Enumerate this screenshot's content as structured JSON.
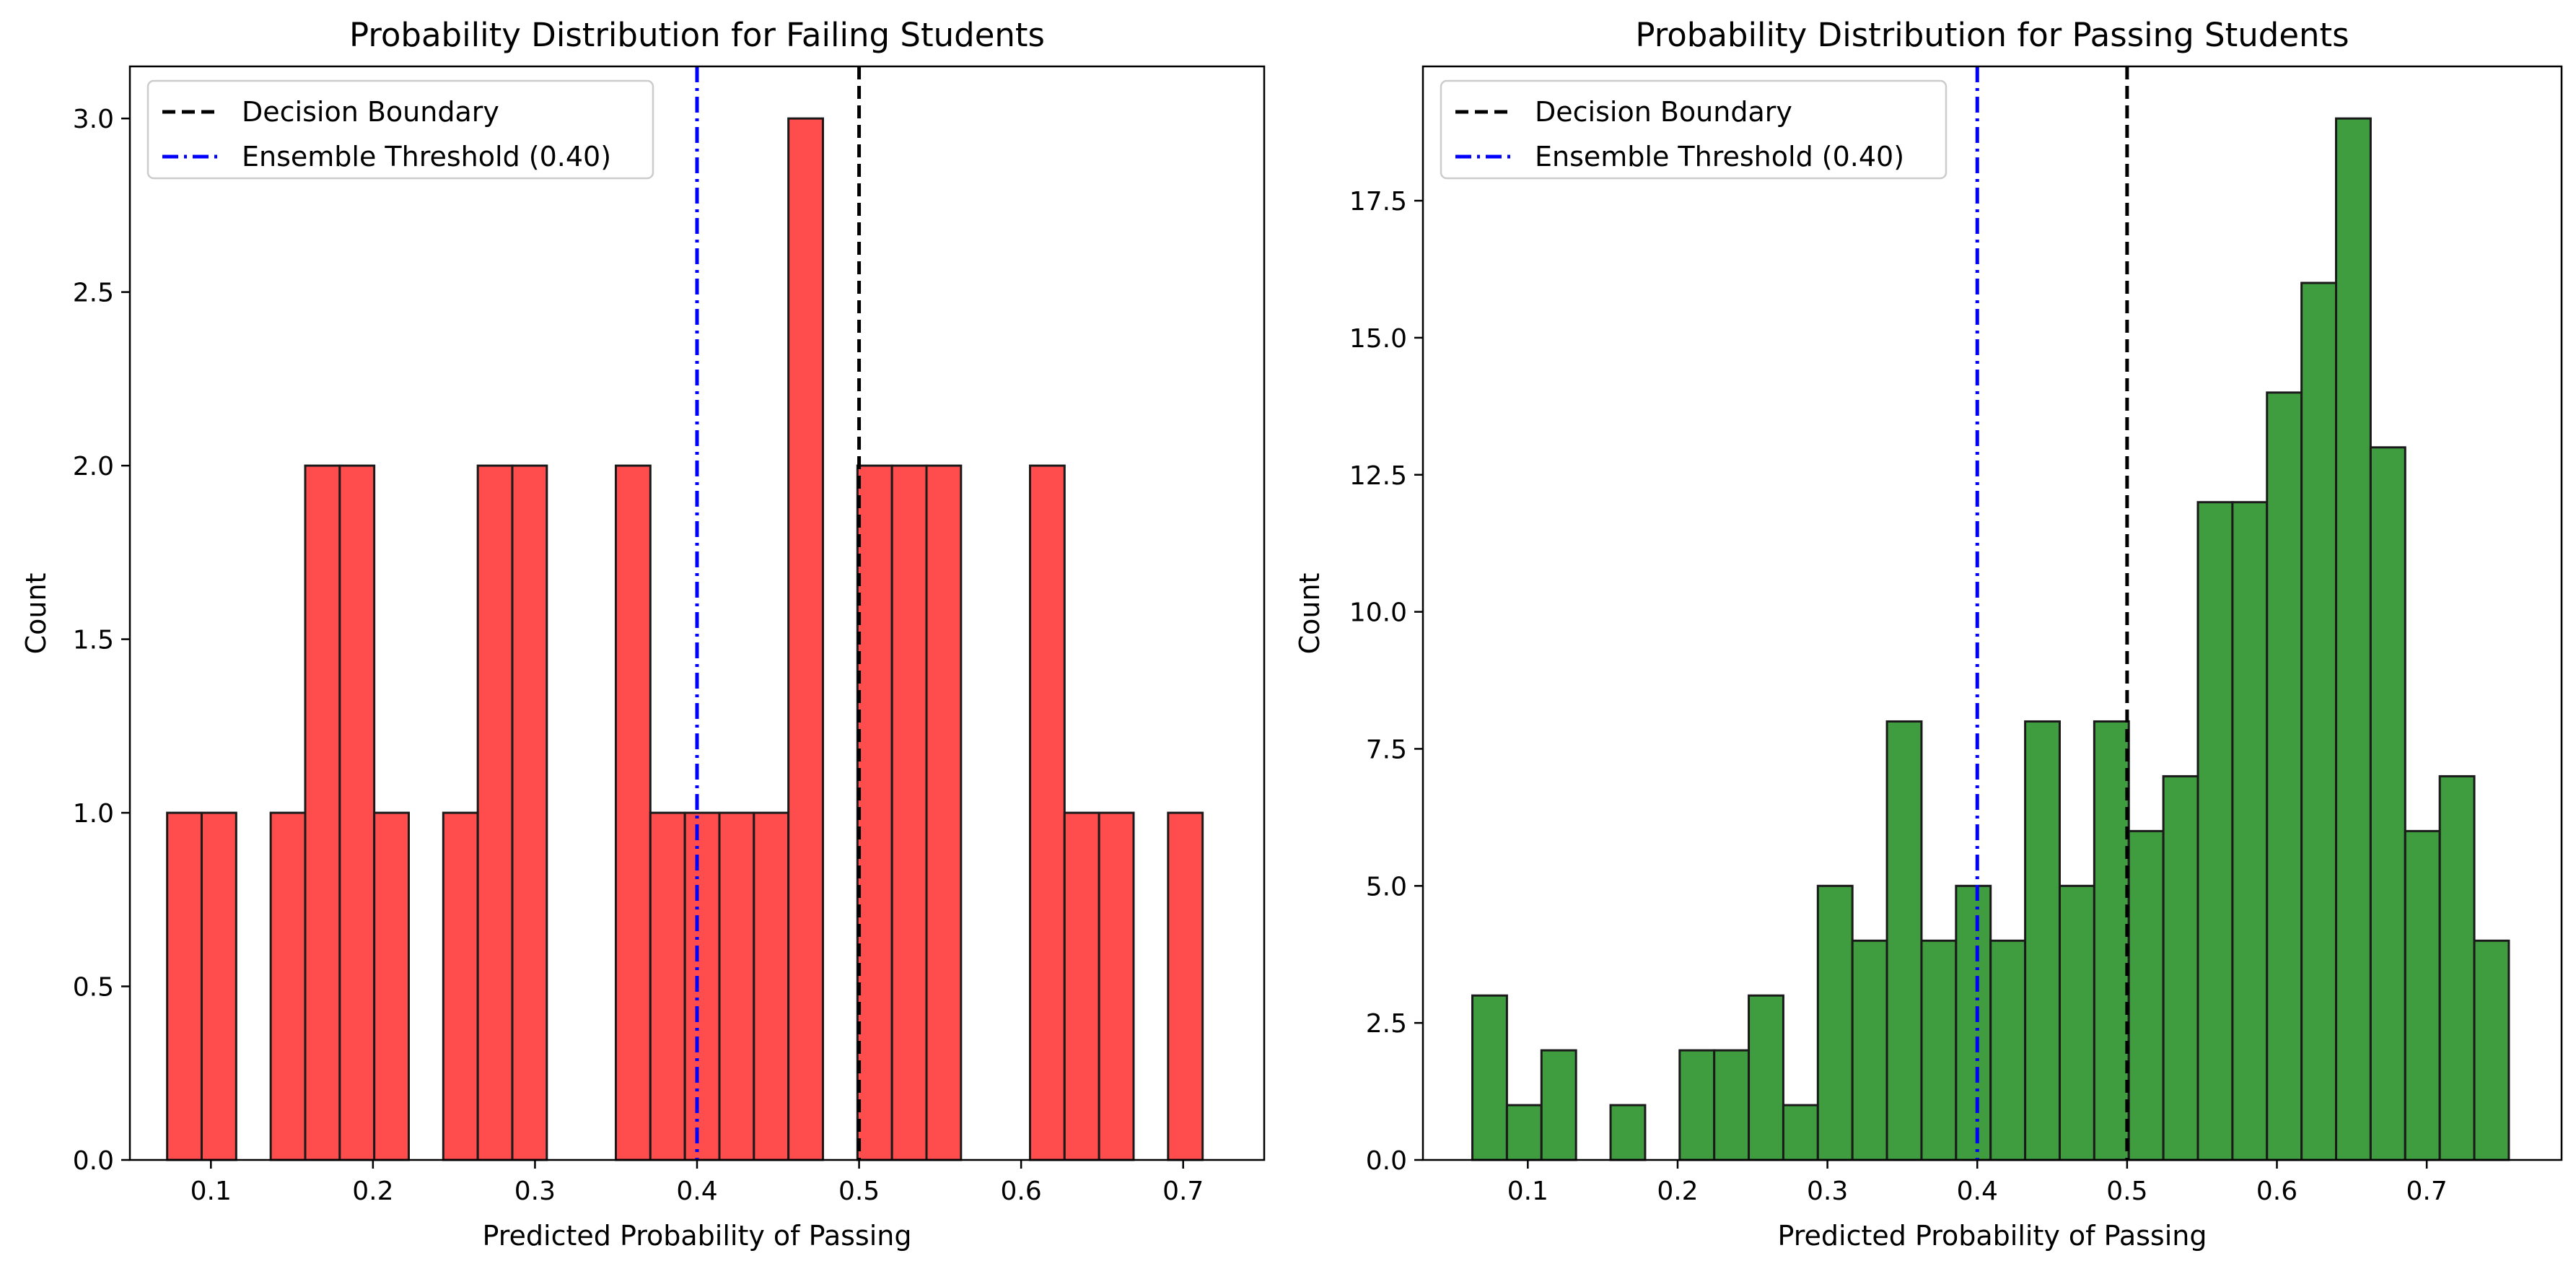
{
  "chart_data": [
    {
      "type": "bar",
      "title": "Probability Distribution for Failing Students",
      "xlabel": "Predicted Probability of Passing",
      "ylabel": "Count",
      "xlim": [
        0.05,
        0.75
      ],
      "ylim": [
        0,
        3.15
      ],
      "xticks": [
        "0.1",
        "0.2",
        "0.3",
        "0.4",
        "0.5",
        "0.6",
        "0.7"
      ],
      "xtick_values": [
        0.1,
        0.2,
        0.3,
        0.4,
        0.5,
        0.6,
        0.7
      ],
      "yticks": [
        "0.0",
        "0.5",
        "1.0",
        "1.5",
        "2.0",
        "2.5",
        "3.0"
      ],
      "ytick_values": [
        0,
        0.5,
        1.0,
        1.5,
        2.0,
        2.5,
        3.0
      ],
      "bar_color": "#ff4c4c",
      "bin_start": 0.073,
      "bin_width": 0.0213,
      "counts": [
        1,
        1,
        0,
        1,
        2,
        2,
        1,
        0,
        1,
        2,
        2,
        0,
        0,
        2,
        1,
        1,
        1,
        1,
        3,
        0,
        2,
        2,
        2,
        0,
        0,
        2,
        1,
        1,
        0,
        1
      ],
      "vlines": [
        {
          "label": "Decision Boundary",
          "x": 0.5,
          "color": "#000000",
          "style": "dashed"
        },
        {
          "label": "Ensemble Threshold (0.40)",
          "x": 0.4,
          "color": "#0000ff",
          "style": "dashdot"
        }
      ],
      "legend_position": "top-left",
      "grid": false
    },
    {
      "type": "bar",
      "title": "Probability Distribution for Passing Students",
      "xlabel": "Predicted Probability of Passing",
      "ylabel": "Count",
      "xlim": [
        0.03,
        0.79
      ],
      "ylim": [
        0,
        19.95
      ],
      "xticks": [
        "0.1",
        "0.2",
        "0.3",
        "0.4",
        "0.5",
        "0.6",
        "0.7"
      ],
      "xtick_values": [
        0.1,
        0.2,
        0.3,
        0.4,
        0.5,
        0.6,
        0.7
      ],
      "yticks": [
        "0.0",
        "2.5",
        "5.0",
        "7.5",
        "10.0",
        "12.5",
        "15.0",
        "17.5"
      ],
      "ytick_values": [
        0,
        2.5,
        5.0,
        7.5,
        10.0,
        12.5,
        15.0,
        17.5
      ],
      "bar_color": "#3f9c3f",
      "bin_start": 0.063,
      "bin_width": 0.02306,
      "counts": [
        3,
        1,
        2,
        0,
        1,
        0,
        2,
        2,
        3,
        1,
        5,
        4,
        8,
        4,
        5,
        4,
        8,
        5,
        8,
        6,
        7,
        12,
        12,
        14,
        16,
        19,
        13,
        6,
        7,
        4
      ],
      "vlines": [
        {
          "label": "Decision Boundary",
          "x": 0.5,
          "color": "#000000",
          "style": "dashed"
        },
        {
          "label": "Ensemble Threshold (0.40)",
          "x": 0.4,
          "color": "#0000ff",
          "style": "dashdot"
        }
      ],
      "legend_position": "top-left",
      "grid": false
    }
  ]
}
